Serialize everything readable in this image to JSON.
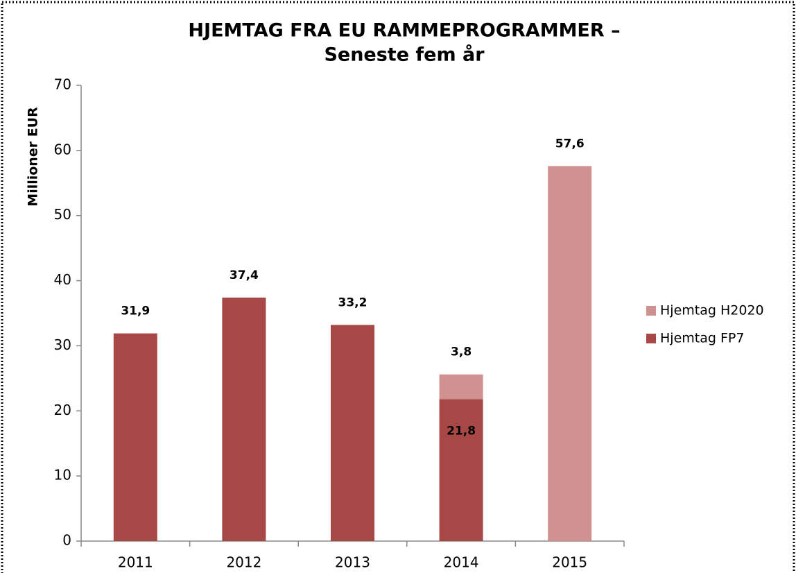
{
  "chart_data": {
    "type": "stacked_bar",
    "title": [
      "HJEMTAG FRA EU RAMMEPROGRAMMER –",
      "Seneste fem år"
    ],
    "y_label": "Millioner EUR",
    "categories": [
      "2011",
      "2012",
      "2013",
      "2014",
      "2015"
    ],
    "series": [
      {
        "name": "Hjemtag FP7",
        "color": "#a84846",
        "values": [
          31.9,
          37.4,
          33.2,
          21.8,
          null
        ],
        "value_labels": [
          "31,9",
          "37,4",
          "33,2",
          "21,8",
          null
        ]
      },
      {
        "name": "Hjemtag H2020",
        "color": "#d09290",
        "values": [
          null,
          null,
          null,
          3.8,
          57.6
        ],
        "value_labels": [
          null,
          null,
          null,
          "3,8",
          "57,6"
        ]
      }
    ],
    "ylim": [
      0,
      70
    ],
    "yticks": [
      0,
      10,
      20,
      30,
      40,
      50,
      60,
      70
    ],
    "grid": false,
    "legend": "right"
  }
}
